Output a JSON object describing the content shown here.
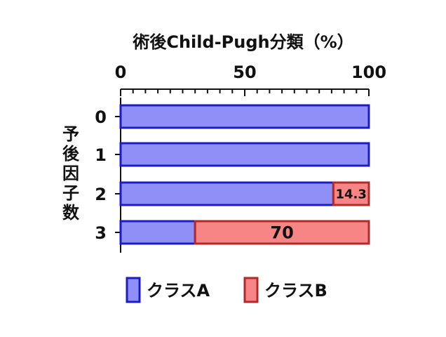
{
  "chart_data": {
    "type": "bar",
    "stacked": true,
    "orientation": "horizontal",
    "title": "術後Child-Pugh分類（%）",
    "ylabel": "予後因子数",
    "categories": [
      "0",
      "1",
      "2",
      "3"
    ],
    "xlim": [
      0,
      100
    ],
    "xticks": [
      "0",
      "50",
      "100"
    ],
    "series": [
      {
        "name": "クラスA",
        "values": [
          100,
          100,
          85.7,
          30
        ],
        "color": "#8f8ff7",
        "edge": "#1c1cc4"
      },
      {
        "name": "クラスB",
        "values": [
          0,
          0,
          14.3,
          70
        ],
        "color": "#f78585",
        "edge": "#b02a2a"
      }
    ],
    "data_labels": {
      "B": [
        "",
        "",
        "14.3",
        "70"
      ]
    },
    "legend_position": "bottom",
    "grid": false
  }
}
